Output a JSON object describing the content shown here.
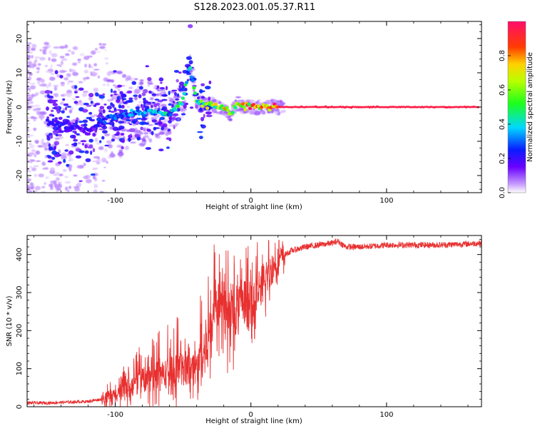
{
  "title": "S128.2023.001.05.37.R11",
  "colors": {
    "snr_line": "#e83030",
    "axes": "#000000",
    "background": "#ffffff"
  },
  "chart_data": [
    {
      "type": "heatmap",
      "title": "",
      "xlabel": "Height of straight line (km)",
      "ylabel": "Frequency (Hz)",
      "xlim": [
        -165,
        170
      ],
      "ylim": [
        -25,
        25
      ],
      "x_ticks": [
        -100,
        0,
        100
      ],
      "y_ticks": [
        -20,
        -10,
        0,
        10,
        20
      ],
      "grid": false,
      "colorbar": {
        "label": "Normalized spectral amplitude",
        "range": [
          0,
          1
        ],
        "ticks": [
          "0.0",
          "0.2",
          "0.4",
          "0.6",
          "0.8"
        ],
        "colormap": "gist_rainbow (white to purple to blue to cyan to green to yellow to orange to red to pink)"
      },
      "ridge": {
        "description": "Main spectral line near 0 Hz strengthening with height",
        "x": [
          -140,
          -120,
          -105,
          -90,
          -75,
          -60,
          -50,
          -45,
          -40,
          -35,
          -30,
          -25,
          -20,
          -15,
          -10,
          -5,
          0,
          10,
          20,
          40,
          80,
          120,
          168
        ],
        "frequency": [
          -5,
          -7,
          -3,
          -2,
          -1,
          -2,
          2,
          12,
          2,
          1,
          1,
          0,
          0,
          -2,
          1,
          0,
          0,
          0,
          0,
          0,
          0,
          0,
          0
        ],
        "amplitude": [
          0.25,
          0.2,
          0.3,
          0.35,
          0.4,
          0.45,
          0.5,
          0.4,
          0.6,
          0.65,
          0.7,
          0.75,
          0.8,
          0.6,
          0.75,
          0.85,
          0.9,
          0.92,
          0.95,
          0.95,
          0.95,
          0.95,
          0.95
        ]
      }
    },
    {
      "type": "line",
      "title": "",
      "xlabel": "Height of straight line (km)",
      "ylabel": "SNR (10 * v/v)",
      "xlim": [
        -165,
        170
      ],
      "ylim": [
        0,
        450
      ],
      "x_ticks": [
        -100,
        0,
        100
      ],
      "y_ticks": [
        0,
        100,
        200,
        300,
        400
      ],
      "grid": false,
      "series": [
        {
          "x": [
            -165,
            -150,
            -135,
            -120,
            -110,
            -100,
            -90,
            -80,
            -70,
            -60,
            -50,
            -45,
            -40,
            -35,
            -30,
            -27,
            -24,
            -20,
            -15,
            -10,
            -5,
            0,
            5,
            10,
            15,
            20,
            25,
            30,
            40,
            50,
            60,
            64,
            70,
            80,
            90,
            100,
            110,
            120,
            140,
            160,
            170
          ],
          "values": [
            10,
            10,
            12,
            14,
            20,
            30,
            50,
            70,
            80,
            90,
            100,
            105,
            100,
            140,
            200,
            270,
            290,
            240,
            250,
            260,
            270,
            250,
            300,
            330,
            360,
            385,
            400,
            410,
            420,
            425,
            430,
            435,
            420,
            420,
            422,
            425,
            425,
            425,
            425,
            428,
            430
          ]
        }
      ]
    }
  ]
}
